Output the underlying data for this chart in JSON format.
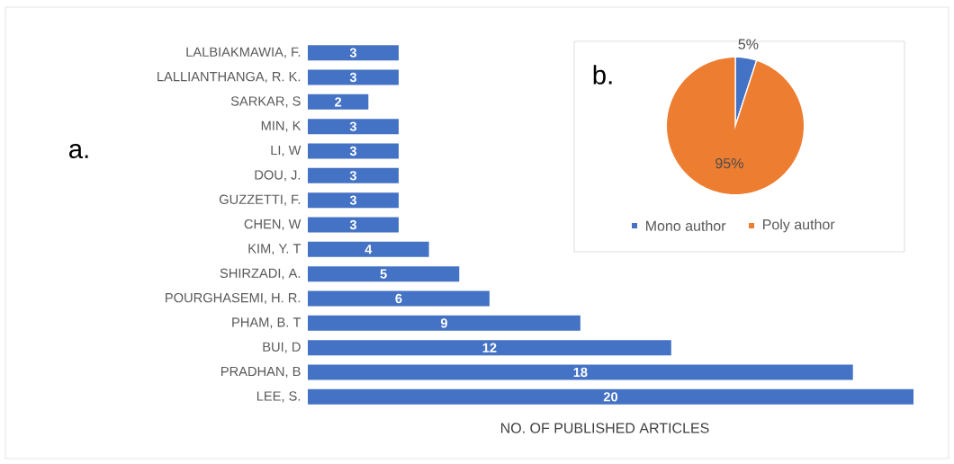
{
  "chart_data": [
    {
      "type": "bar",
      "orientation": "horizontal",
      "xlabel": "NO. OF PUBLISHED ARTICLES",
      "annotations": [
        "a."
      ],
      "categories": [
        "LALBIAKMAWIA, F.",
        "LALLIANTHANGA, R. K.",
        "SARKAR, S",
        "MIN, K",
        "LI, W",
        "DOU, J.",
        "GUZZETTI, F.",
        "CHEN, W",
        "KIM, Y. T",
        "SHIRZADI, A.",
        "POURGHASEMI, H. R.",
        "PHAM, B. T",
        "BUI, D",
        "PRADHAN, B",
        "LEE, S."
      ],
      "values": [
        3,
        3,
        2,
        3,
        3,
        3,
        3,
        3,
        4,
        5,
        6,
        9,
        12,
        18,
        20
      ],
      "value_labels": [
        "3",
        "3",
        "2",
        "3",
        "3",
        "3",
        "3",
        "3",
        "4",
        "5",
        "6",
        "9",
        "12",
        "18",
        "20"
      ],
      "color": "#4472c4"
    },
    {
      "type": "pie",
      "annotations": [
        "b."
      ],
      "categories": [
        "Mono author",
        "Poly author"
      ],
      "values": [
        5,
        95
      ],
      "value_labels": [
        "5%",
        "95%"
      ],
      "colors": [
        "#4472c4",
        "#ed7d31"
      ],
      "legend": "bottom"
    }
  ]
}
